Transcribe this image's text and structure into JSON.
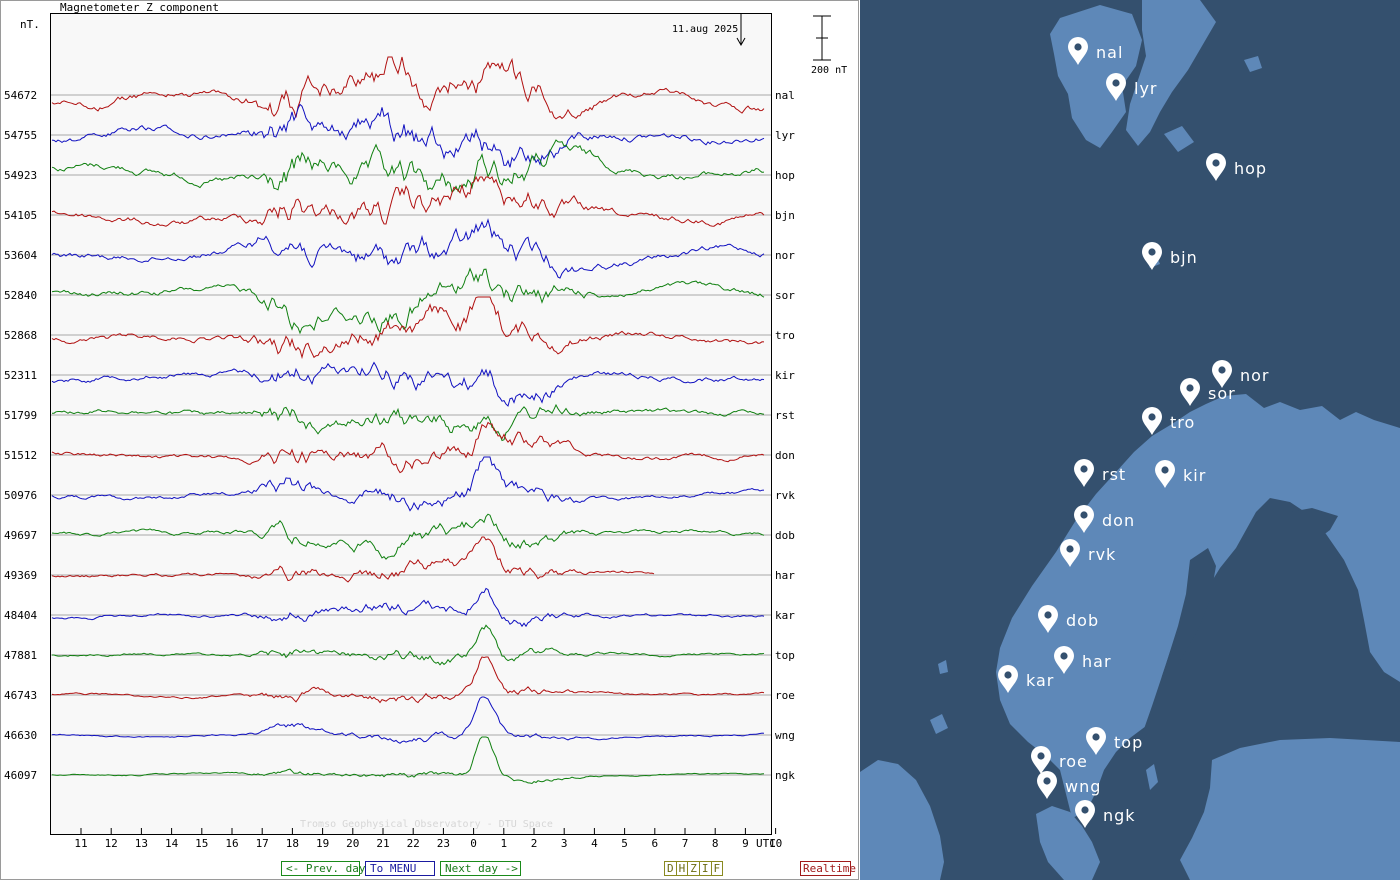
{
  "chart_data": {
    "type": "line",
    "title": "Magnetometer Z component",
    "ylabel": "nT.",
    "date_marker": "11.aug 2025",
    "scale_bar_label": "200 nT",
    "x_unit_label": "UTC",
    "x_ticks": [
      "11",
      "12",
      "13",
      "14",
      "15",
      "16",
      "17",
      "18",
      "19",
      "20",
      "21",
      "22",
      "23",
      "0",
      "1",
      "2",
      "3",
      "4",
      "5",
      "6",
      "7",
      "8",
      "9",
      "10"
    ],
    "watermark": "Tromso Geophysical Observatory - DTU Space",
    "grid": true,
    "series": [
      {
        "name": "nal",
        "baseline": "54672",
        "color": "#b01010"
      },
      {
        "name": "lyr",
        "baseline": "54755",
        "color": "#1010c0"
      },
      {
        "name": "hop",
        "baseline": "54923",
        "color": "#108010"
      },
      {
        "name": "bjn",
        "baseline": "54105",
        "color": "#b01010"
      },
      {
        "name": "nor",
        "baseline": "53604",
        "color": "#1010c0"
      },
      {
        "name": "sor",
        "baseline": "52840",
        "color": "#108010"
      },
      {
        "name": "tro",
        "baseline": "52868",
        "color": "#b01010"
      },
      {
        "name": "kir",
        "baseline": "52311",
        "color": "#1010c0"
      },
      {
        "name": "rst",
        "baseline": "51799",
        "color": "#108010"
      },
      {
        "name": "don",
        "baseline": "51512",
        "color": "#b01010"
      },
      {
        "name": "rvk",
        "baseline": "50976",
        "color": "#1010c0"
      },
      {
        "name": "dob",
        "baseline": "49697",
        "color": "#108010"
      },
      {
        "name": "har",
        "baseline": "49369",
        "color": "#b01010"
      },
      {
        "name": "kar",
        "baseline": "48404",
        "color": "#1010c0"
      },
      {
        "name": "top",
        "baseline": "47881",
        "color": "#108010"
      },
      {
        "name": "roe",
        "baseline": "46743",
        "color": "#b01010"
      },
      {
        "name": "wng",
        "baseline": "46630",
        "color": "#1010c0"
      },
      {
        "name": "ngk",
        "baseline": "46097",
        "color": "#108010"
      }
    ]
  },
  "nav": {
    "prev_label": "<- Prev. day",
    "menu_label": "To MENU",
    "next_label": "Next day ->",
    "components": [
      "D",
      "H",
      "Z",
      "I",
      "F"
    ],
    "realtime_label": "Realtime"
  },
  "map": {
    "colors": {
      "sea": "#34506e",
      "land": "#5e88b8",
      "marker": "#ffffff"
    },
    "stations": [
      "nal",
      "lyr",
      "hop",
      "bjn",
      "nor",
      "sor",
      "tro",
      "kir",
      "rst",
      "don",
      "rvk",
      "dob",
      "har",
      "kar",
      "top",
      "roe",
      "wng",
      "ngk"
    ]
  }
}
